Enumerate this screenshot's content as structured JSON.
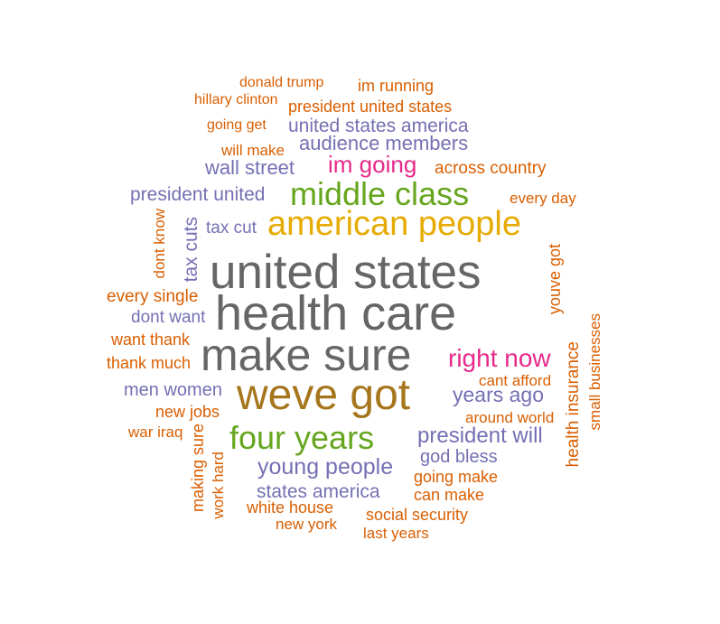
{
  "colors": {
    "orange": "#D95F02",
    "purple": "#7570B3",
    "magenta": "#E7298A",
    "green": "#66A61E",
    "gold": "#E6AB02",
    "brown": "#A6761D",
    "gray": "#666666"
  },
  "words": [
    "donald trump",
    "im running",
    "hillary clinton",
    "president united states",
    "going get",
    "united states america",
    "will make",
    "audience members",
    "im going",
    "wall street",
    "across country",
    "middle class",
    "president united",
    "every day",
    "american people",
    "tax cut",
    "dont know",
    "tax cuts",
    "youve got",
    "united states",
    "every single",
    "health care",
    "dont want",
    "small businesses",
    "want thank",
    "make sure",
    "right now",
    "thank much",
    "cant afford",
    "health insurance",
    "weve got",
    "men women",
    "years ago",
    "new jobs",
    "around world",
    "war iraq",
    "four years",
    "president will",
    "god bless",
    "making sure",
    "work hard",
    "young people",
    "going make",
    "states america",
    "can make",
    "white house",
    "social security",
    "new york",
    "last years"
  ]
}
